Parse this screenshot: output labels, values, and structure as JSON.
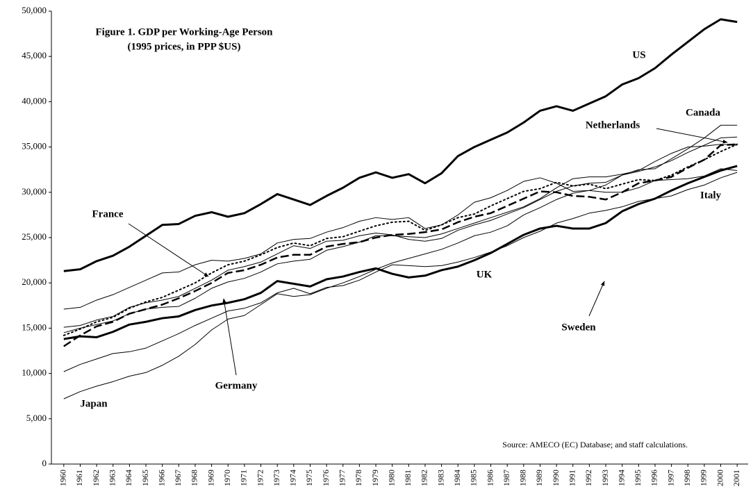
{
  "chart_data": {
    "type": "line",
    "title": "Figure 1. GDP per Working-Age Person",
    "subtitle": "(1995 prices, in PPP $US)",
    "source": "Source: AMECO (EC) Database; and staff calculations.",
    "categories": [
      "1960",
      "1961",
      "1962",
      "1963",
      "1964",
      "1965",
      "1966",
      "1967",
      "1968",
      "1969",
      "1970",
      "1971",
      "1972",
      "1973",
      "1974",
      "1975",
      "1976",
      "1977",
      "1978",
      "1979",
      "1980",
      "1981",
      "1982",
      "1983",
      "1984",
      "1985",
      "1986",
      "1987",
      "1988",
      "1989",
      "1990",
      "1991",
      "1992",
      "1993",
      "1994",
      "1995",
      "1996",
      "1997",
      "1998",
      "1999",
      "2000",
      "2001"
    ],
    "ylim": [
      0,
      50000
    ],
    "yticks": [
      0,
      {
        "value": 5000,
        "label": "5,000"
      },
      {
        "value": 10000,
        "label": "10,000"
      },
      {
        "value": 15000,
        "label": "15,000"
      },
      {
        "value": 20000,
        "label": "20,000"
      },
      {
        "value": 25000,
        "label": "25,000"
      },
      {
        "value": 30000,
        "label": "30,000"
      },
      {
        "value": 35000,
        "label": "35,000"
      },
      {
        "value": 40000,
        "label": "40,000"
      },
      {
        "value": 45000,
        "label": "45,000"
      },
      {
        "value": 50000,
        "label": "50,000"
      }
    ],
    "series": [
      {
        "name": "US",
        "color": "#000000",
        "line_width": 3,
        "dash": "solid",
        "values": [
          21300,
          21500,
          22400,
          23000,
          24000,
          25200,
          26400,
          26500,
          27400,
          27800,
          27300,
          27700,
          28700,
          29800,
          29200,
          28600,
          29600,
          30500,
          31600,
          32200,
          31600,
          32000,
          31000,
          32100,
          34000,
          35000,
          35800,
          36600,
          37700,
          39000,
          39500,
          39000,
          39800,
          40600,
          41900,
          42600,
          43700,
          45200,
          46600,
          48000,
          49100,
          48800
        ]
      },
      {
        "name": "Canada",
        "color": "#000000",
        "line_width": 1,
        "dash": "solid",
        "values": [
          17100,
          17300,
          18100,
          18700,
          19500,
          20300,
          21100,
          21200,
          22000,
          22500,
          22400,
          22700,
          23200,
          24400,
          24800,
          24900,
          25600,
          26100,
          26800,
          27200,
          27000,
          27200,
          26000,
          26400,
          27500,
          28900,
          29400,
          30200,
          31200,
          31600,
          31000,
          30100,
          30200,
          30800,
          31900,
          32500,
          32600,
          33700,
          34800,
          36000,
          37400,
          37400
        ]
      },
      {
        "name": "Netherlands",
        "color": "#000000",
        "line_width": 1,
        "dash": "solid",
        "values": [
          15100,
          15300,
          15900,
          16300,
          17300,
          17800,
          18100,
          18500,
          19400,
          20300,
          21400,
          21800,
          22300,
          23200,
          24100,
          23800,
          24600,
          24700,
          25200,
          25500,
          25300,
          24800,
          24600,
          24900,
          25800,
          26400,
          26900,
          27600,
          28300,
          29200,
          30100,
          30700,
          31000,
          31100,
          31900,
          32300,
          32800,
          33500,
          34400,
          35200,
          36000,
          36100
        ]
      },
      {
        "name": "France",
        "color": "#000000",
        "line_width": 2,
        "dash": "dotted",
        "values": [
          14200,
          14900,
          15700,
          16200,
          17200,
          17900,
          18400,
          19200,
          20000,
          21100,
          22000,
          22400,
          23100,
          23900,
          24400,
          24100,
          24900,
          25100,
          25700,
          26300,
          26700,
          26800,
          25800,
          26400,
          27200,
          27600,
          28500,
          29300,
          30100,
          30400,
          31100,
          30700,
          30900,
          30400,
          30900,
          31400,
          31300,
          31900,
          32800,
          33600,
          34500,
          35300
        ]
      },
      {
        "name": "Germany",
        "color": "#000000",
        "line_width": 1,
        "dash": "solid",
        "values": [
          14500,
          15000,
          15400,
          15800,
          16600,
          17100,
          17300,
          17400,
          18300,
          19400,
          20100,
          20500,
          21200,
          22100,
          22400,
          22600,
          23600,
          24000,
          24500,
          25200,
          25200,
          25100,
          25000,
          25400,
          26000,
          26600,
          27200,
          27800,
          28400,
          29300,
          30500,
          31500,
          31700,
          31700,
          32000,
          32400,
          33400,
          34300,
          35000,
          35100,
          35300,
          35200
        ]
      },
      {
        "name": "Sweden",
        "color": "#000000",
        "line_width": 2.5,
        "dash": "dashed",
        "values": [
          13000,
          14200,
          15200,
          15700,
          16600,
          17100,
          17600,
          18300,
          19100,
          20000,
          21100,
          21400,
          22000,
          22800,
          23100,
          23100,
          24000,
          24300,
          24500,
          25000,
          25300,
          25400,
          25600,
          25900,
          26700,
          27300,
          27700,
          28500,
          29300,
          30100,
          30000,
          29600,
          29500,
          29200,
          30000,
          31000,
          31300,
          31700,
          32700,
          33600,
          35200,
          35300
        ]
      },
      {
        "name": "UK",
        "color": "#000000",
        "line_width": 3,
        "dash": "solid",
        "values": [
          13800,
          14100,
          14000,
          14600,
          15400,
          15700,
          16100,
          16300,
          17000,
          17500,
          17800,
          18200,
          18900,
          20200,
          19900,
          19600,
          20400,
          20700,
          21200,
          21600,
          21000,
          20600,
          20800,
          21400,
          21800,
          22500,
          23300,
          24300,
          25300,
          26000,
          26300,
          26000,
          26000,
          26600,
          27900,
          28700,
          29300,
          30200,
          31000,
          31700,
          32400,
          32900
        ]
      },
      {
        "name": "Italy",
        "color": "#000000",
        "line_width": 1,
        "dash": "solid",
        "values": [
          10200,
          11000,
          11600,
          12200,
          12400,
          12800,
          13600,
          14400,
          15300,
          16100,
          16900,
          17200,
          17800,
          18900,
          19400,
          18800,
          19500,
          19700,
          20300,
          21200,
          22000,
          21900,
          21800,
          21900,
          22300,
          22800,
          23400,
          24100,
          25000,
          25700,
          26600,
          27100,
          27700,
          28000,
          28400,
          29000,
          29300,
          29600,
          30300,
          30800,
          31600,
          32200
        ]
      },
      {
        "name": "Japan",
        "color": "#000000",
        "line_width": 1,
        "dash": "solid",
        "values": [
          7200,
          8000,
          8600,
          9100,
          9700,
          10100,
          10900,
          11900,
          13200,
          14800,
          16000,
          16400,
          17600,
          18800,
          18500,
          18700,
          19400,
          20000,
          20700,
          21500,
          22200,
          22700,
          23200,
          23700,
          24400,
          25200,
          25600,
          26300,
          27500,
          28300,
          29200,
          29900,
          30200,
          30000,
          30000,
          30500,
          31300,
          31400,
          31500,
          31800,
          32600,
          32400
        ]
      }
    ]
  }
}
